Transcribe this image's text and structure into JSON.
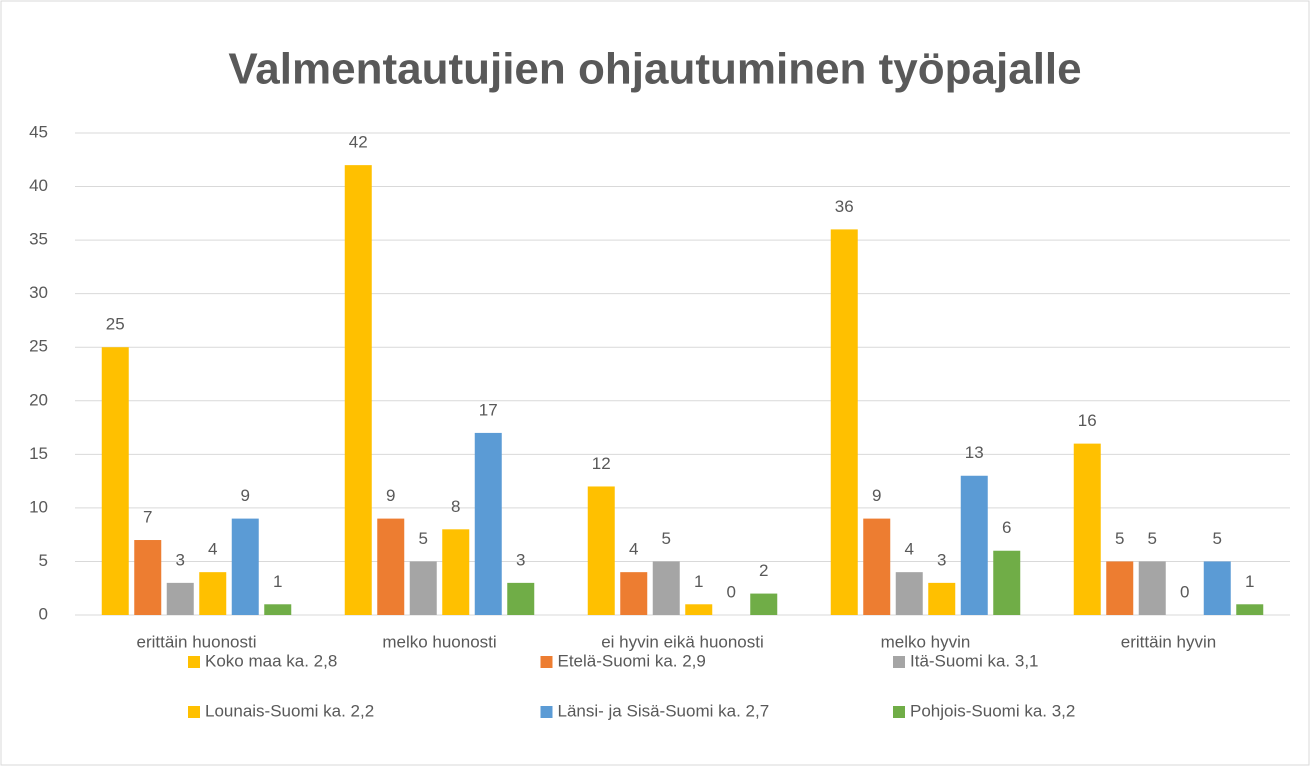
{
  "chart_data": {
    "type": "bar",
    "title": "Valmentautujien ohjautuminen työpajalle",
    "categories": [
      "erittäin huonosti",
      "melko huonosti",
      "ei hyvin eikä huonosti",
      "melko hyvin",
      "erittäin hyvin"
    ],
    "series": [
      {
        "name": "Koko maa ka. 2,8",
        "color": "#FFC000",
        "values": [
          25,
          42,
          12,
          36,
          16
        ]
      },
      {
        "name": "Etelä-Suomi ka. 2,9",
        "color": "#ED7D31",
        "values": [
          7,
          9,
          4,
          9,
          5
        ]
      },
      {
        "name": "Itä-Suomi ka. 3,1",
        "color": "#A5A5A5",
        "values": [
          3,
          5,
          5,
          4,
          5
        ]
      },
      {
        "name": "Lounais-Suomi ka. 2,2",
        "color": "#FFC000",
        "values": [
          4,
          8,
          1,
          3,
          0
        ]
      },
      {
        "name": "Länsi- ja Sisä-Suomi ka. 2,7",
        "color": "#5B9BD5",
        "values": [
          9,
          17,
          0,
          13,
          5
        ]
      },
      {
        "name": "Pohjois-Suomi ka. 3,2",
        "color": "#70AD47",
        "values": [
          1,
          3,
          2,
          6,
          1
        ]
      }
    ],
    "ylim": [
      0,
      45
    ],
    "yticks": [
      0,
      5,
      10,
      15,
      20,
      25,
      30,
      35,
      40,
      45
    ],
    "grid": true,
    "legend": "bottom"
  }
}
